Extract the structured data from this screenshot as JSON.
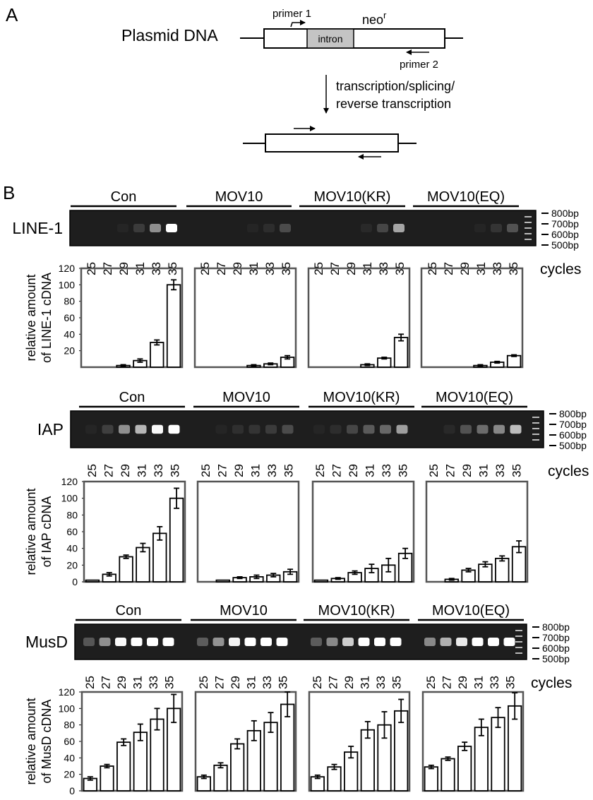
{
  "panel_a": {
    "letter": "A",
    "plasmid_label": "Plasmid DNA",
    "primer1_label": "primer 1",
    "intron_label": "intron",
    "neo_label": "neo",
    "neo_superscript": "r",
    "primer2_label": "primer 2",
    "process_line1": "transcription/splicing/",
    "process_line2": "reverse transcription"
  },
  "panel_b": {
    "letter": "B",
    "ladder_labels": [
      "800bp",
      "700bp",
      "600bp",
      "500bp"
    ],
    "cycles_label": "cycles",
    "conditions": [
      "Con",
      "MOV10",
      "MOV10(KR)",
      "MOV10(EQ)"
    ],
    "cycles": [
      "25",
      "27",
      "29",
      "31",
      "33",
      "35"
    ],
    "colors": {
      "gel_background": "#1e1e1e",
      "band": "#ffffff",
      "bar_fill": "#ffffff",
      "frame": "#555555"
    }
  },
  "chart_data": [
    {
      "type": "bar",
      "panel": "LINE-1",
      "gel_label": "LINE-1",
      "ylabel_line1": "relative amount",
      "ylabel_line2": "of LINE-1 cDNA",
      "yticks": [
        "20",
        "40",
        "60",
        "80",
        "100",
        "120"
      ],
      "ylim": [
        0,
        120
      ],
      "x": [
        "25",
        "27",
        "29",
        "31",
        "33",
        "35"
      ],
      "series": [
        {
          "name": "Con",
          "values": [
            0,
            0,
            2,
            8,
            30,
            100
          ],
          "errors": [
            0,
            0,
            1,
            2,
            3,
            6
          ]
        },
        {
          "name": "MOV10",
          "values": [
            0,
            0,
            0,
            2,
            4,
            12
          ],
          "errors": [
            0,
            0,
            0,
            1,
            1,
            2
          ]
        },
        {
          "name": "MOV10(KR)",
          "values": [
            0,
            0,
            0,
            3,
            11,
            36
          ],
          "errors": [
            0,
            0,
            0,
            1,
            1,
            4
          ]
        },
        {
          "name": "MOV10(EQ)",
          "values": [
            0,
            0,
            0,
            2,
            6,
            14
          ],
          "errors": [
            0,
            0,
            0,
            1,
            1,
            1
          ]
        }
      ]
    },
    {
      "type": "bar",
      "panel": "IAP",
      "gel_label": "IAP",
      "ylabel_line1": "relative amount",
      "ylabel_line2": "of IAP cDNA",
      "yticks": [
        "0",
        "20",
        "40",
        "60",
        "80",
        "100",
        "120"
      ],
      "ylim": [
        0,
        120
      ],
      "x": [
        "25",
        "27",
        "29",
        "31",
        "33",
        "35"
      ],
      "series": [
        {
          "name": "Con",
          "values": [
            2,
            9,
            30,
            41,
            58,
            100
          ],
          "errors": [
            0,
            2,
            2,
            5,
            8,
            12
          ]
        },
        {
          "name": "MOV10",
          "values": [
            0,
            2,
            5,
            6,
            8,
            12
          ],
          "errors": [
            0,
            0,
            1,
            2,
            2,
            3
          ]
        },
        {
          "name": "MOV10(KR)",
          "values": [
            2,
            4,
            11,
            16,
            20,
            34
          ],
          "errors": [
            0,
            1,
            2,
            5,
            8,
            6
          ]
        },
        {
          "name": "MOV10(EQ)",
          "values": [
            0,
            3,
            14,
            21,
            28,
            42
          ],
          "errors": [
            0,
            1,
            2,
            3,
            3,
            7
          ]
        }
      ]
    },
    {
      "type": "bar",
      "panel": "MusD",
      "gel_label": "MusD",
      "ylabel_line1": "relative amount",
      "ylabel_line2": "of MusD cDNA",
      "yticks": [
        "0",
        "20",
        "40",
        "60",
        "80",
        "100",
        "120"
      ],
      "ylim": [
        0,
        120
      ],
      "x": [
        "25",
        "27",
        "29",
        "31",
        "33",
        "35"
      ],
      "series": [
        {
          "name": "Con",
          "values": [
            15,
            30,
            59,
            71,
            87,
            100
          ],
          "errors": [
            2,
            2,
            4,
            10,
            13,
            17
          ]
        },
        {
          "name": "MOV10",
          "values": [
            17,
            31,
            57,
            73,
            83,
            105
          ],
          "errors": [
            2,
            3,
            6,
            12,
            12,
            15
          ]
        },
        {
          "name": "MOV10(KR)",
          "values": [
            17,
            29,
            47,
            74,
            80,
            97
          ],
          "errors": [
            2,
            3,
            7,
            10,
            16,
            14
          ]
        },
        {
          "name": "MOV10(EQ)",
          "values": [
            29,
            39,
            54,
            77,
            89,
            103
          ],
          "errors": [
            2,
            2,
            5,
            10,
            12,
            16
          ]
        }
      ]
    }
  ]
}
